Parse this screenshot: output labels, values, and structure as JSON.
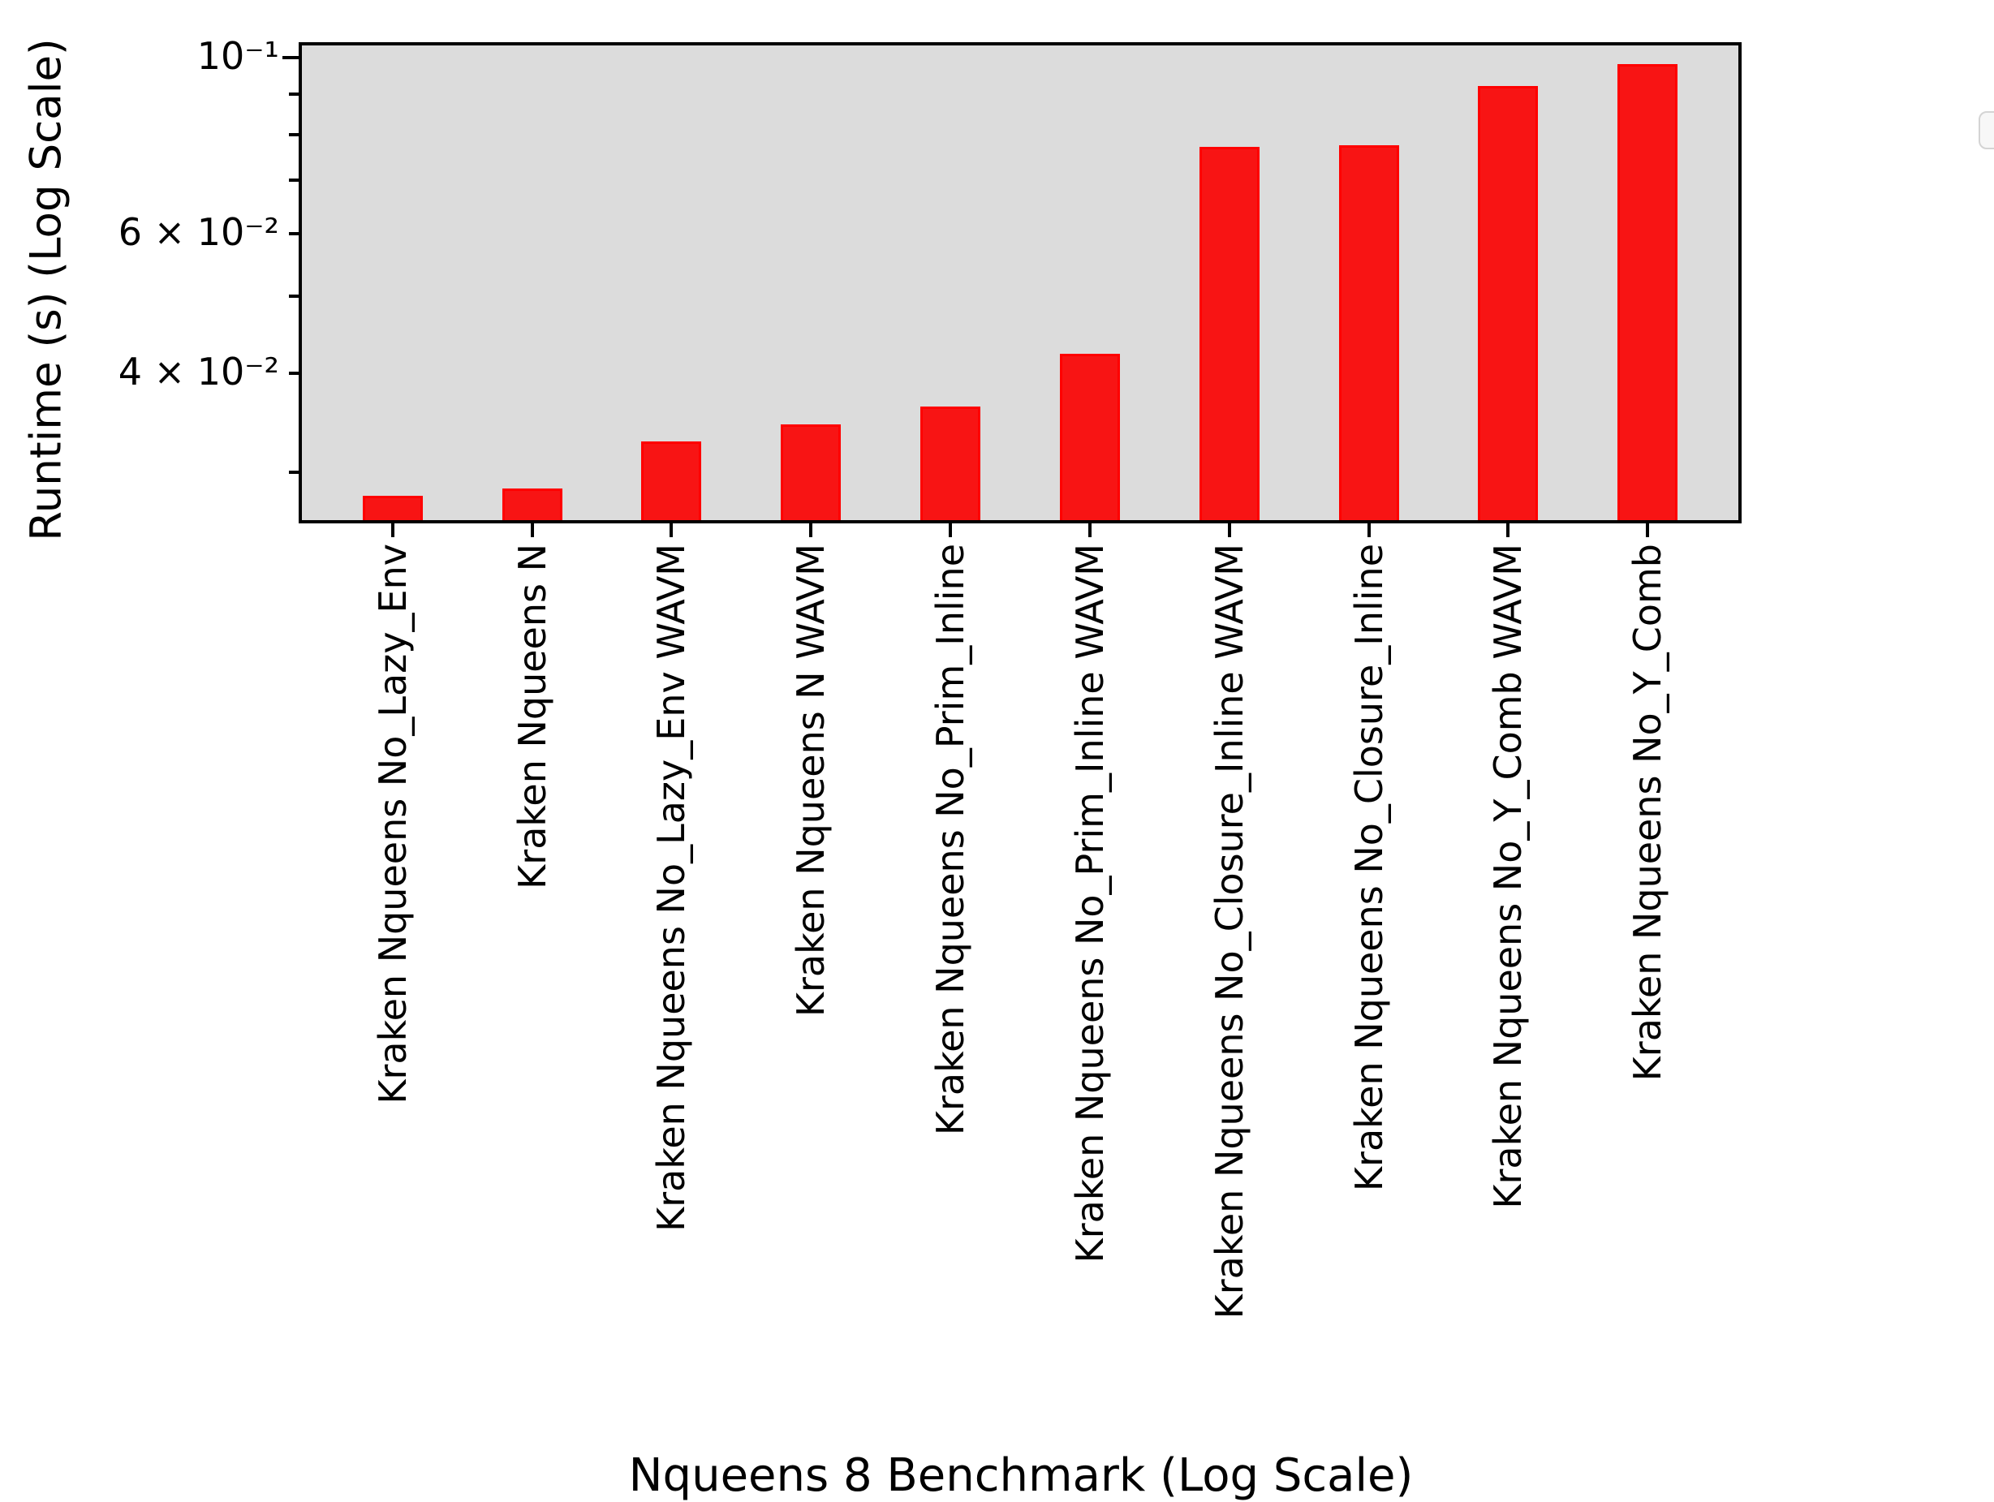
{
  "figure": {
    "background": "#ffffff",
    "plot_background": "#dcdcdc",
    "spine_color": "#000000",
    "text_color": "#000000"
  },
  "chart_data": {
    "type": "bar",
    "title": "",
    "xlabel": "Nqueens 8 Benchmark (Log Scale)",
    "ylabel": "Runtime (s) (Log Scale)",
    "yscale": "log",
    "ylim": [
      0.0261,
      0.1036
    ],
    "grid": false,
    "bar_color": "#f81414",
    "bar_edge_color": "#ff0000",
    "categories": [
      "Kraken Nqueens No_Lazy_Env",
      "Kraken Nqueens N",
      "Kraken Nqueens No_Lazy_Env WAVM",
      "Kraken Nqueens N WAVM",
      "Kraken Nqueens No_Prim_Inline",
      "Kraken Nqueens No_Prim_Inline WAVM",
      "Kraken Nqueens No_Closure_Inline WAVM",
      "Kraken Nqueens No_Closure_Inline",
      "Kraken Nqueens No_Y_Comb WAVM",
      "Kraken Nqueens No_Y_Comb"
    ],
    "values": [
      0.028,
      0.0286,
      0.0328,
      0.0345,
      0.0363,
      0.0423,
      0.0771,
      0.0776,
      0.0921,
      0.0981
    ],
    "yticks_labeled": [
      {
        "value": 0.1,
        "label": "10⁻¹"
      },
      {
        "value": 0.06,
        "label": "6 × 10⁻²"
      },
      {
        "value": 0.04,
        "label": "4 × 10⁻²"
      }
    ],
    "yticks_minor": [
      0.09,
      0.08,
      0.07,
      0.06,
      0.05,
      0.04,
      0.03
    ],
    "legend": {
      "visible": true,
      "empty": true,
      "entries": [],
      "position": "upper right"
    }
  }
}
